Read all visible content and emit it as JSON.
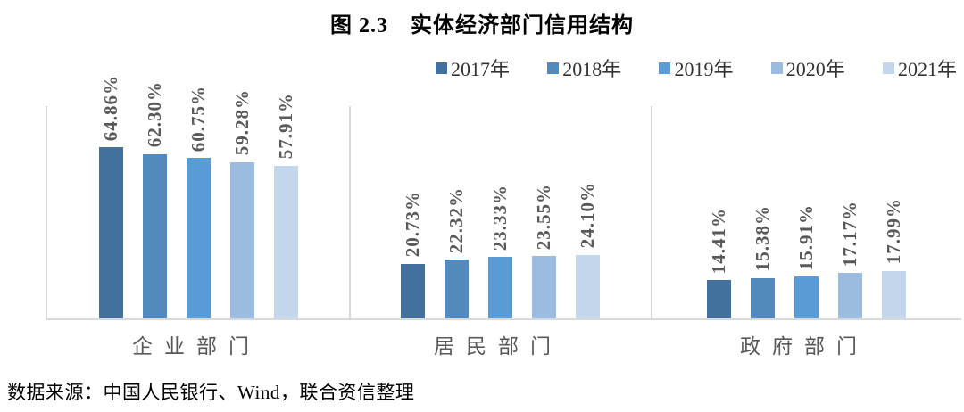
{
  "title": "图 2.3　实体经济部门信用结构",
  "source_note": "数据来源：中国人民银行、Wind，联合资信整理",
  "colors": {
    "axis_line": "#D9D9D9",
    "value_label": "#595959",
    "category_label": "#595959",
    "title_text": "#000000",
    "source_text": "#000000"
  },
  "legend": {
    "position": "top-right",
    "items": [
      {
        "label": "2017年",
        "color": "#41719C"
      },
      {
        "label": "2018年",
        "color": "#5389BD"
      },
      {
        "label": "2019年",
        "color": "#5B9BD5"
      },
      {
        "label": "2020年",
        "color": "#9BBCE0"
      },
      {
        "label": "2021年",
        "color": "#C3D6EC"
      }
    ]
  },
  "chart_data": {
    "type": "bar",
    "title": "图 2.3　实体经济部门信用结构",
    "categories": [
      "企业部门",
      "居民部门",
      "政府部门"
    ],
    "series": [
      {
        "name": "2017年",
        "color": "#41719C",
        "values": [
          64.86,
          20.73,
          14.41
        ],
        "labels": [
          "64.86%",
          "20.73%",
          "14.41%"
        ]
      },
      {
        "name": "2018年",
        "color": "#5389BD",
        "values": [
          62.3,
          22.32,
          15.38
        ],
        "labels": [
          "62.30%",
          "22.32%",
          "15.38%"
        ]
      },
      {
        "name": "2019年",
        "color": "#5B9BD5",
        "values": [
          60.75,
          23.33,
          15.91
        ],
        "labels": [
          "60.75%",
          "23.33%",
          "15.91%"
        ]
      },
      {
        "name": "2020年",
        "color": "#9BBCE0",
        "values": [
          59.28,
          23.55,
          17.17
        ],
        "labels": [
          "59.28%",
          "23.55%",
          "17.17%"
        ]
      },
      {
        "name": "2021年",
        "color": "#C3D6EC",
        "values": [
          57.91,
          24.1,
          17.99
        ],
        "labels": [
          "57.91%",
          "24.10%",
          "17.99%"
        ]
      }
    ],
    "unit": "%",
    "ylim": [
      0,
      80
    ],
    "grid": false,
    "value_label_rotation": -90,
    "legend_position": "top-right"
  }
}
